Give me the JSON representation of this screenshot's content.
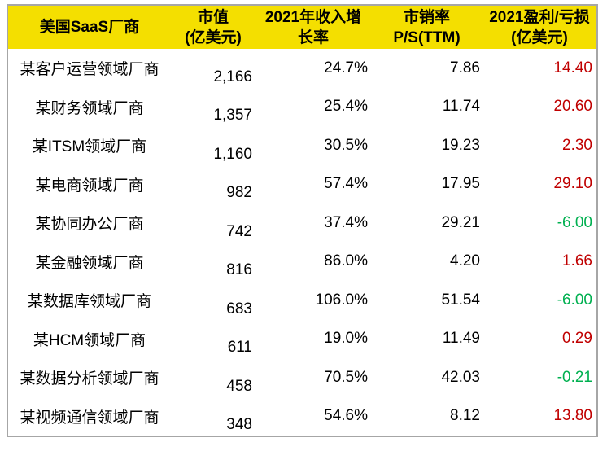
{
  "table": {
    "header": {
      "bg_color": "#F4DF00",
      "columns": [
        {
          "line1": "美国SaaS厂商",
          "line2": ""
        },
        {
          "line1": "市值",
          "line2": "(亿美元)"
        },
        {
          "line1": "2021年收入增",
          "line2": "长率"
        },
        {
          "line1": "市销率",
          "line2": "P/S(TTM)"
        },
        {
          "line1": "2021盈利/亏损",
          "line2": "(亿美元)"
        }
      ]
    },
    "rows": [
      {
        "vendor": "某客户运营领域厂商",
        "market_cap": "2,166",
        "growth": "24.7%",
        "ps": "7.86",
        "profit": "14.40"
      },
      {
        "vendor": "某财务领域厂商",
        "market_cap": "1,357",
        "growth": "25.4%",
        "ps": "11.74",
        "profit": "20.60"
      },
      {
        "vendor": "某ITSM领域厂商",
        "market_cap": "1,160",
        "growth": "30.5%",
        "ps": "19.23",
        "profit": "2.30"
      },
      {
        "vendor": "某电商领域厂商",
        "market_cap": "982",
        "growth": "57.4%",
        "ps": "17.95",
        "profit": "29.10"
      },
      {
        "vendor": "某协同办公厂商",
        "market_cap": "742",
        "growth": "37.4%",
        "ps": "29.21",
        "profit": "-6.00"
      },
      {
        "vendor": "某金融领域厂商",
        "market_cap": "816",
        "growth": "86.0%",
        "ps": "4.20",
        "profit": "1.66"
      },
      {
        "vendor": "某数据库领域厂商",
        "market_cap": "683",
        "growth": "106.0%",
        "ps": "51.54",
        "profit": "-6.00"
      },
      {
        "vendor": "某HCM领域厂商",
        "market_cap": "611",
        "growth": "19.0%",
        "ps": "11.49",
        "profit": "0.29"
      },
      {
        "vendor": "某数据分析领域厂商",
        "market_cap": "458",
        "growth": "70.5%",
        "ps": "42.03",
        "profit": "-0.21"
      },
      {
        "vendor": "某视频通信领域厂商",
        "market_cap": "348",
        "growth": "54.6%",
        "ps": "8.12",
        "profit": "13.80"
      }
    ],
    "colors": {
      "header_bg": "#F4DF00",
      "profit_positive": "#C00000",
      "profit_negative": "#00B050",
      "border": "#A6A6A6",
      "text": "#000000"
    }
  },
  "chart_data": {
    "type": "table",
    "columns": [
      "美国SaaS厂商",
      "市值(亿美元)",
      "2021年收入增长率",
      "市销率P/S(TTM)",
      "2021盈利/亏损(亿美元)"
    ],
    "rows": [
      [
        "某客户运营领域厂商",
        "2,166",
        "24.7%",
        "7.86",
        "14.40"
      ],
      [
        "某财务领域厂商",
        "1,357",
        "25.4%",
        "11.74",
        "20.60"
      ],
      [
        "某ITSM领域厂商",
        "1,160",
        "30.5%",
        "19.23",
        "2.30"
      ],
      [
        "某电商领域厂商",
        "982",
        "57.4%",
        "17.95",
        "29.10"
      ],
      [
        "某协同办公厂商",
        "742",
        "37.4%",
        "29.21",
        "-6.00"
      ],
      [
        "某金融领域厂商",
        "816",
        "86.0%",
        "4.20",
        "1.66"
      ],
      [
        "某数据库领域厂商",
        "683",
        "106.0%",
        "51.54",
        "-6.00"
      ],
      [
        "某HCM领域厂商",
        "611",
        "19.0%",
        "11.49",
        "0.29"
      ],
      [
        "某数据分析领域厂商",
        "458",
        "70.5%",
        "42.03",
        "-0.21"
      ],
      [
        "某视频通信领域厂商",
        "348",
        "54.6%",
        "8.12",
        "13.80"
      ]
    ],
    "notes": "负值(亏损)显示为绿色，正值(盈利)显示为红色"
  }
}
